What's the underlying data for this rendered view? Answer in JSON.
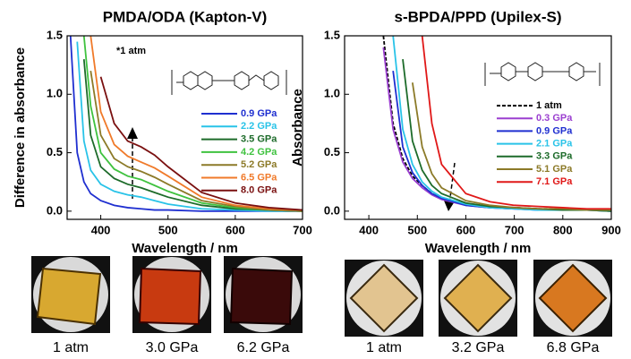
{
  "chart_data": [
    {
      "type": "line",
      "title": "PMDA/ODA (Kapton-V)",
      "x_label": "Wavelength / nm",
      "y_label": "Difference in absorbance",
      "annotation": "*1 atm",
      "x": [
        355,
        365,
        375,
        385,
        400,
        420,
        440,
        460,
        480,
        500,
        550,
        600,
        650,
        700
      ],
      "xlim": [
        350,
        700
      ],
      "xticks": [
        400,
        500,
        600,
        700
      ],
      "ylim": [
        -0.07,
        1.5
      ],
      "yticks": [
        {
          "value": 0,
          "label": "0.0"
        },
        0.5,
        {
          "value": 1,
          "label": "1.0"
        },
        1.5
      ],
      "series": [
        {
          "name": "0.9 GPa",
          "color": "#1f2fd0",
          "values": [
            1.5,
            0.5,
            0.25,
            0.15,
            0.09,
            0.05,
            0.03,
            0.02,
            0.01,
            0.01,
            0,
            0,
            0,
            0
          ]
        },
        {
          "name": "2.2 GPa",
          "color": "#29c3e8",
          "values": [
            null,
            1.45,
            0.6,
            0.35,
            0.23,
            0.17,
            0.14,
            0.12,
            0.09,
            0.06,
            0.02,
            0.01,
            0,
            0
          ]
        },
        {
          "name": "3.5 GPa",
          "color": "#1d6b2a",
          "values": [
            null,
            null,
            1.3,
            0.65,
            0.38,
            0.28,
            0.23,
            0.2,
            0.16,
            0.12,
            0.05,
            0.02,
            0.01,
            0
          ]
        },
        {
          "name": "4.2 GPa",
          "color": "#3fc23f",
          "values": [
            null,
            null,
            1.5,
            0.9,
            0.5,
            0.36,
            0.3,
            0.27,
            0.22,
            0.17,
            0.07,
            0.03,
            0.01,
            0
          ]
        },
        {
          "name": "5.2 GPa",
          "color": "#8c7a28",
          "values": [
            null,
            null,
            null,
            1.2,
            0.65,
            0.45,
            0.38,
            0.34,
            0.29,
            0.23,
            0.09,
            0.04,
            0.01,
            0
          ]
        },
        {
          "name": "6.5 GPa",
          "color": "#f07a2a",
          "values": [
            null,
            null,
            null,
            1.5,
            0.85,
            0.57,
            0.47,
            0.42,
            0.37,
            0.3,
            0.12,
            0.05,
            0.02,
            0.01
          ]
        },
        {
          "name": "8.0 GPa",
          "color": "#7a1010",
          "values": [
            null,
            null,
            null,
            null,
            1.15,
            0.75,
            0.6,
            0.55,
            0.48,
            0.38,
            0.16,
            0.07,
            0.03,
            0.01
          ]
        }
      ]
    },
    {
      "type": "line",
      "title": "s-BPDA/PPD (Upilex-S)",
      "x_label": "Wavelength / nm",
      "y_label": "Absorbance",
      "x": [
        430,
        450,
        470,
        490,
        510,
        530,
        550,
        600,
        650,
        700,
        750,
        800,
        850,
        900
      ],
      "xlim": [
        350,
        900
      ],
      "xticks": [
        400,
        500,
        600,
        700,
        800,
        900
      ],
      "ylim": [
        -0.07,
        1.5
      ],
      "yticks": [
        {
          "value": 0,
          "label": "0.0"
        },
        0.5,
        {
          "value": 1,
          "label": "1.0"
        },
        1.5
      ],
      "series": [
        {
          "name": "1 atm",
          "color": "#000000",
          "dash": true,
          "values": [
            1.5,
            0.75,
            0.45,
            0.3,
            0.22,
            0.15,
            0.11,
            0.06,
            0.04,
            0.03,
            0.02,
            0.02,
            0.01,
            0.01
          ]
        },
        {
          "name": "0.3 GPa",
          "color": "#9b3fd0",
          "values": [
            1.4,
            0.7,
            0.42,
            0.28,
            0.2,
            0.14,
            0.1,
            0.05,
            0.03,
            0.02,
            0.02,
            0.01,
            0.01,
            0.01
          ]
        },
        {
          "name": "0.9 GPa",
          "color": "#1f2fd0",
          "values": [
            null,
            1.2,
            0.55,
            0.33,
            0.22,
            0.15,
            0.11,
            0.05,
            0.03,
            0.02,
            0.01,
            0.01,
            0.01,
            0
          ]
        },
        {
          "name": "2.1 GPa",
          "color": "#29c3e8",
          "values": [
            null,
            1.5,
            0.7,
            0.4,
            0.25,
            0.17,
            0.12,
            0.06,
            0.03,
            0.02,
            0.01,
            0.01,
            0.01,
            0
          ]
        },
        {
          "name": "3.3 GPa",
          "color": "#1d6b2a",
          "values": [
            null,
            null,
            1.3,
            0.6,
            0.35,
            0.22,
            0.15,
            0.07,
            0.04,
            0.03,
            0.02,
            0.01,
            0.01,
            0
          ]
        },
        {
          "name": "5.1 GPa",
          "color": "#8c7a28",
          "values": [
            null,
            null,
            null,
            1.1,
            0.55,
            0.32,
            0.2,
            0.09,
            0.05,
            0.03,
            0.02,
            0.02,
            0.01,
            0.01
          ]
        },
        {
          "name": "7.1 GPa",
          "color": "#e01818",
          "values": [
            null,
            null,
            null,
            null,
            1.5,
            0.75,
            0.4,
            0.15,
            0.08,
            0.05,
            0.04,
            0.03,
            0.02,
            0.02
          ]
        }
      ]
    }
  ],
  "photos": [
    {
      "labels": [
        "1 atm",
        "3.0 GPa",
        "6.2 GPa"
      ]
    },
    {
      "labels": [
        "1 atm",
        "3.2 GPa",
        "6.8 GPa"
      ]
    }
  ]
}
